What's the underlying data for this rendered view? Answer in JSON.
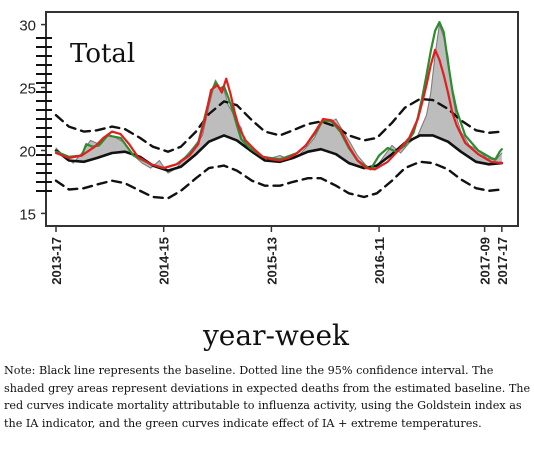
{
  "chart_data": {
    "type": "line",
    "title": "Total",
    "xlabel": "year-week",
    "ylabel": "",
    "ylim": [
      14,
      31
    ],
    "yticks": [
      15,
      20,
      25,
      30
    ],
    "xlim": [
      0,
      208
    ],
    "xticks": [
      {
        "label": "2013-17",
        "x": 0
      },
      {
        "label": "2014-15",
        "x": 50
      },
      {
        "label": "2015-13",
        "x": 100
      },
      {
        "label": "2016-11",
        "x": 150
      },
      {
        "label": "2017-09",
        "x": 199
      },
      {
        "label": "2017-17",
        "x": 207
      }
    ],
    "grid": false,
    "legend": "none",
    "colors": {
      "baseline": "#111111",
      "ci": "#111111",
      "influenza": "#e0201e",
      "ia_temperature": "#2e8b2e",
      "shaded": "#bdbdbd"
    },
    "series": [
      {
        "key": "upper_ci",
        "style": "dashed",
        "x": [
          0,
          6,
          13,
          19,
          26,
          32,
          39,
          45,
          52,
          58,
          65,
          71,
          78,
          84,
          91,
          97,
          104,
          110,
          117,
          123,
          130,
          136,
          143,
          149,
          156,
          162,
          169,
          175,
          182,
          188,
          195,
          201,
          207
        ],
        "y": [
          22.8,
          21.9,
          21.5,
          21.6,
          21.9,
          21.7,
          21.0,
          20.3,
          19.9,
          20.3,
          21.5,
          22.9,
          23.9,
          23.6,
          22.4,
          21.5,
          21.2,
          21.6,
          22.1,
          22.3,
          21.9,
          21.2,
          20.8,
          21.0,
          22.2,
          23.4,
          24.1,
          24.0,
          23.3,
          22.4,
          21.6,
          21.4,
          21.5
        ]
      },
      {
        "key": "baseline",
        "style": "solid",
        "x": [
          0,
          6,
          13,
          19,
          26,
          32,
          39,
          45,
          52,
          58,
          65,
          71,
          78,
          84,
          91,
          97,
          104,
          110,
          117,
          123,
          130,
          136,
          143,
          149,
          156,
          162,
          169,
          175,
          182,
          188,
          195,
          201,
          207
        ],
        "y": [
          20.0,
          19.2,
          19.1,
          19.4,
          19.8,
          19.9,
          19.5,
          18.8,
          18.4,
          18.7,
          19.7,
          20.7,
          21.2,
          20.8,
          19.9,
          19.2,
          19.1,
          19.4,
          19.9,
          20.1,
          19.7,
          19.0,
          18.6,
          18.8,
          19.7,
          20.6,
          21.2,
          21.2,
          20.7,
          19.9,
          19.1,
          18.9,
          19.0
        ]
      },
      {
        "key": "lower_ci",
        "style": "dashed",
        "x": [
          0,
          6,
          13,
          19,
          26,
          32,
          39,
          45,
          52,
          58,
          65,
          71,
          78,
          84,
          91,
          97,
          104,
          110,
          117,
          123,
          130,
          136,
          143,
          149,
          156,
          162,
          169,
          175,
          182,
          188,
          195,
          201,
          207
        ],
        "y": [
          17.6,
          16.9,
          17.0,
          17.3,
          17.6,
          17.4,
          16.8,
          16.3,
          16.2,
          16.8,
          17.8,
          18.6,
          18.8,
          18.4,
          17.6,
          17.2,
          17.2,
          17.5,
          17.8,
          17.8,
          17.2,
          16.6,
          16.3,
          16.6,
          17.6,
          18.6,
          19.1,
          19.0,
          18.5,
          17.7,
          17.0,
          16.8,
          16.9
        ]
      },
      {
        "key": "observed",
        "style": "thin",
        "x": [
          0,
          4,
          8,
          12,
          16,
          20,
          24,
          28,
          32,
          36,
          40,
          44,
          48,
          52,
          56,
          60,
          64,
          68,
          71,
          74,
          76,
          78,
          80,
          82,
          84,
          86,
          88,
          92,
          96,
          100,
          104,
          108,
          112,
          116,
          120,
          124,
          128,
          130,
          132,
          136,
          140,
          144,
          148,
          152,
          156,
          160,
          164,
          168,
          172,
          174,
          176,
          178,
          180,
          182,
          184,
          186,
          188,
          192,
          196,
          200,
          204,
          207
        ],
        "y": [
          20.2,
          19.5,
          19.0,
          19.8,
          20.8,
          20.5,
          21.3,
          21.0,
          20.6,
          19.6,
          19.0,
          18.6,
          19.2,
          18.2,
          18.6,
          19.5,
          20.3,
          21.2,
          23.5,
          25.6,
          25.0,
          24.8,
          23.6,
          23.0,
          22.3,
          21.8,
          20.4,
          19.8,
          19.5,
          19.4,
          19.6,
          19.3,
          19.5,
          20.2,
          21.0,
          22.4,
          22.3,
          22.5,
          21.9,
          20.8,
          19.6,
          18.8,
          18.5,
          19.5,
          20.4,
          19.8,
          20.6,
          21.2,
          22.8,
          24.6,
          27.6,
          30.0,
          29.0,
          27.5,
          24.5,
          22.6,
          21.5,
          20.4,
          20.0,
          19.4,
          19.2,
          19.8
        ]
      },
      {
        "name": "",
        "key": "influenza",
        "style": "solid",
        "x": [
          0,
          6,
          12,
          18,
          22,
          26,
          30,
          34,
          38,
          44,
          50,
          56,
          62,
          66,
          69,
          72,
          75,
          77,
          79,
          81,
          83,
          85,
          88,
          92,
          96,
          100,
          104,
          108,
          112,
          116,
          120,
          124,
          128,
          132,
          136,
          140,
          144,
          148,
          154,
          160,
          164,
          168,
          170,
          172,
          174,
          176,
          178,
          180,
          182,
          184,
          186,
          190,
          196,
          202,
          207
        ],
        "y": [
          19.8,
          19.4,
          19.6,
          20.3,
          21.0,
          21.5,
          21.3,
          20.5,
          19.5,
          18.9,
          18.6,
          18.9,
          19.6,
          20.5,
          22.4,
          24.8,
          25.2,
          24.6,
          25.7,
          24.5,
          23.0,
          21.8,
          20.8,
          20.1,
          19.5,
          19.3,
          19.2,
          19.4,
          19.8,
          20.4,
          21.4,
          22.5,
          22.4,
          21.7,
          20.3,
          19.2,
          18.6,
          18.5,
          19.1,
          20.2,
          21.0,
          22.5,
          23.8,
          25.2,
          26.8,
          28.0,
          27.2,
          26.0,
          24.6,
          23.0,
          22.0,
          20.6,
          19.7,
          19.1,
          19.0
        ]
      },
      {
        "name": "",
        "key": "ia_temperature",
        "style": "solid",
        "x": [
          0,
          6,
          12,
          14,
          17,
          20,
          24,
          30,
          36,
          44,
          50,
          56,
          62,
          66,
          69,
          72,
          74,
          76,
          78,
          80,
          82,
          84,
          86,
          90,
          96,
          104,
          112,
          116,
          120,
          124,
          128,
          132,
          136,
          140,
          146,
          150,
          154,
          158,
          162,
          166,
          168,
          170,
          172,
          174,
          176,
          178,
          180,
          182,
          184,
          186,
          190,
          196,
          202,
          204,
          206,
          207
        ],
        "y": [
          19.9,
          19.5,
          19.6,
          20.5,
          20.3,
          20.4,
          21.2,
          21.0,
          19.6,
          18.9,
          18.6,
          18.9,
          19.7,
          20.6,
          22.6,
          24.6,
          25.4,
          24.9,
          25.1,
          24.2,
          23.2,
          22.0,
          20.9,
          20.2,
          19.5,
          19.3,
          19.8,
          20.4,
          21.3,
          22.4,
          22.3,
          21.5,
          20.2,
          19.2,
          18.5,
          19.6,
          20.2,
          19.9,
          20.4,
          21.4,
          22.6,
          24.2,
          26.0,
          27.9,
          29.5,
          30.2,
          29.4,
          27.0,
          24.8,
          23.2,
          21.2,
          20.0,
          19.4,
          19.3,
          19.9,
          20.1
        ]
      }
    ]
  },
  "axes_labels": {
    "y_ticks": [
      "15",
      "20",
      "25",
      "30"
    ]
  },
  "note": "Note: Black line represents the baseline. Dotted line the 95% confidence interval. The shaded grey areas represent deviations in expected deaths from the estimated baseline. The red curves indicate mortality attributable to influenza activity, using the Goldstein index as the IA indicator, and the green curves indicate effect of IA + extreme temperatures."
}
